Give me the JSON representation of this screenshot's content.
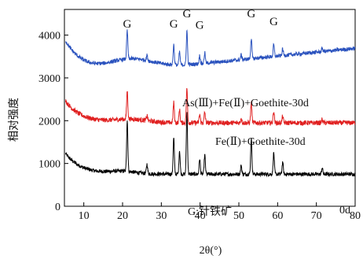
{
  "chart_data": {
    "type": "line",
    "xlabel": "2θ(°)",
    "ylabel": "相对强度",
    "xlim": [
      5,
      80
    ],
    "ylim": [
      0,
      4600
    ],
    "x_ticks": [
      10,
      20,
      30,
      40,
      50,
      60,
      70,
      80
    ],
    "y_ticks": [
      0,
      1000,
      2000,
      3000,
      4000
    ],
    "series": [
      {
        "name": "0d",
        "color": "#000000",
        "baseline": 750
      },
      {
        "name": "Fe(Ⅱ)+Goethite-30d",
        "color": "#e02020",
        "baseline": 1950
      },
      {
        "name": "As(Ⅲ)+Fe(Ⅱ)+Goethite-30d",
        "color": "#2a52be",
        "baseline": 3400
      }
    ],
    "peaks": [
      {
        "x": 21.2,
        "label": "G",
        "height": 1200
      },
      {
        "x": 26.3,
        "label": "",
        "height": 220
      },
      {
        "x": 33.2,
        "label": "G",
        "height": 850
      },
      {
        "x": 34.7,
        "label": "",
        "height": 550
      },
      {
        "x": 36.6,
        "label": "G",
        "height": 1450
      },
      {
        "x": 39.9,
        "label": "G",
        "height": 350
      },
      {
        "x": 41.2,
        "label": "",
        "height": 450
      },
      {
        "x": 50.6,
        "label": "",
        "height": 200
      },
      {
        "x": 53.2,
        "label": "G",
        "height": 850
      },
      {
        "x": 59.0,
        "label": "G",
        "height": 500
      },
      {
        "x": 61.3,
        "label": "",
        "height": 280
      },
      {
        "x": 71.5,
        "label": "",
        "height": 150
      }
    ],
    "annotations": {
      "blue_label": "As(Ⅲ)+Fe(Ⅱ)+Goethite-30d",
      "red_label": "Fe(Ⅱ)+Goethite-30d",
      "black_label": "0d",
      "legend_note": "G:针铁矿"
    }
  }
}
